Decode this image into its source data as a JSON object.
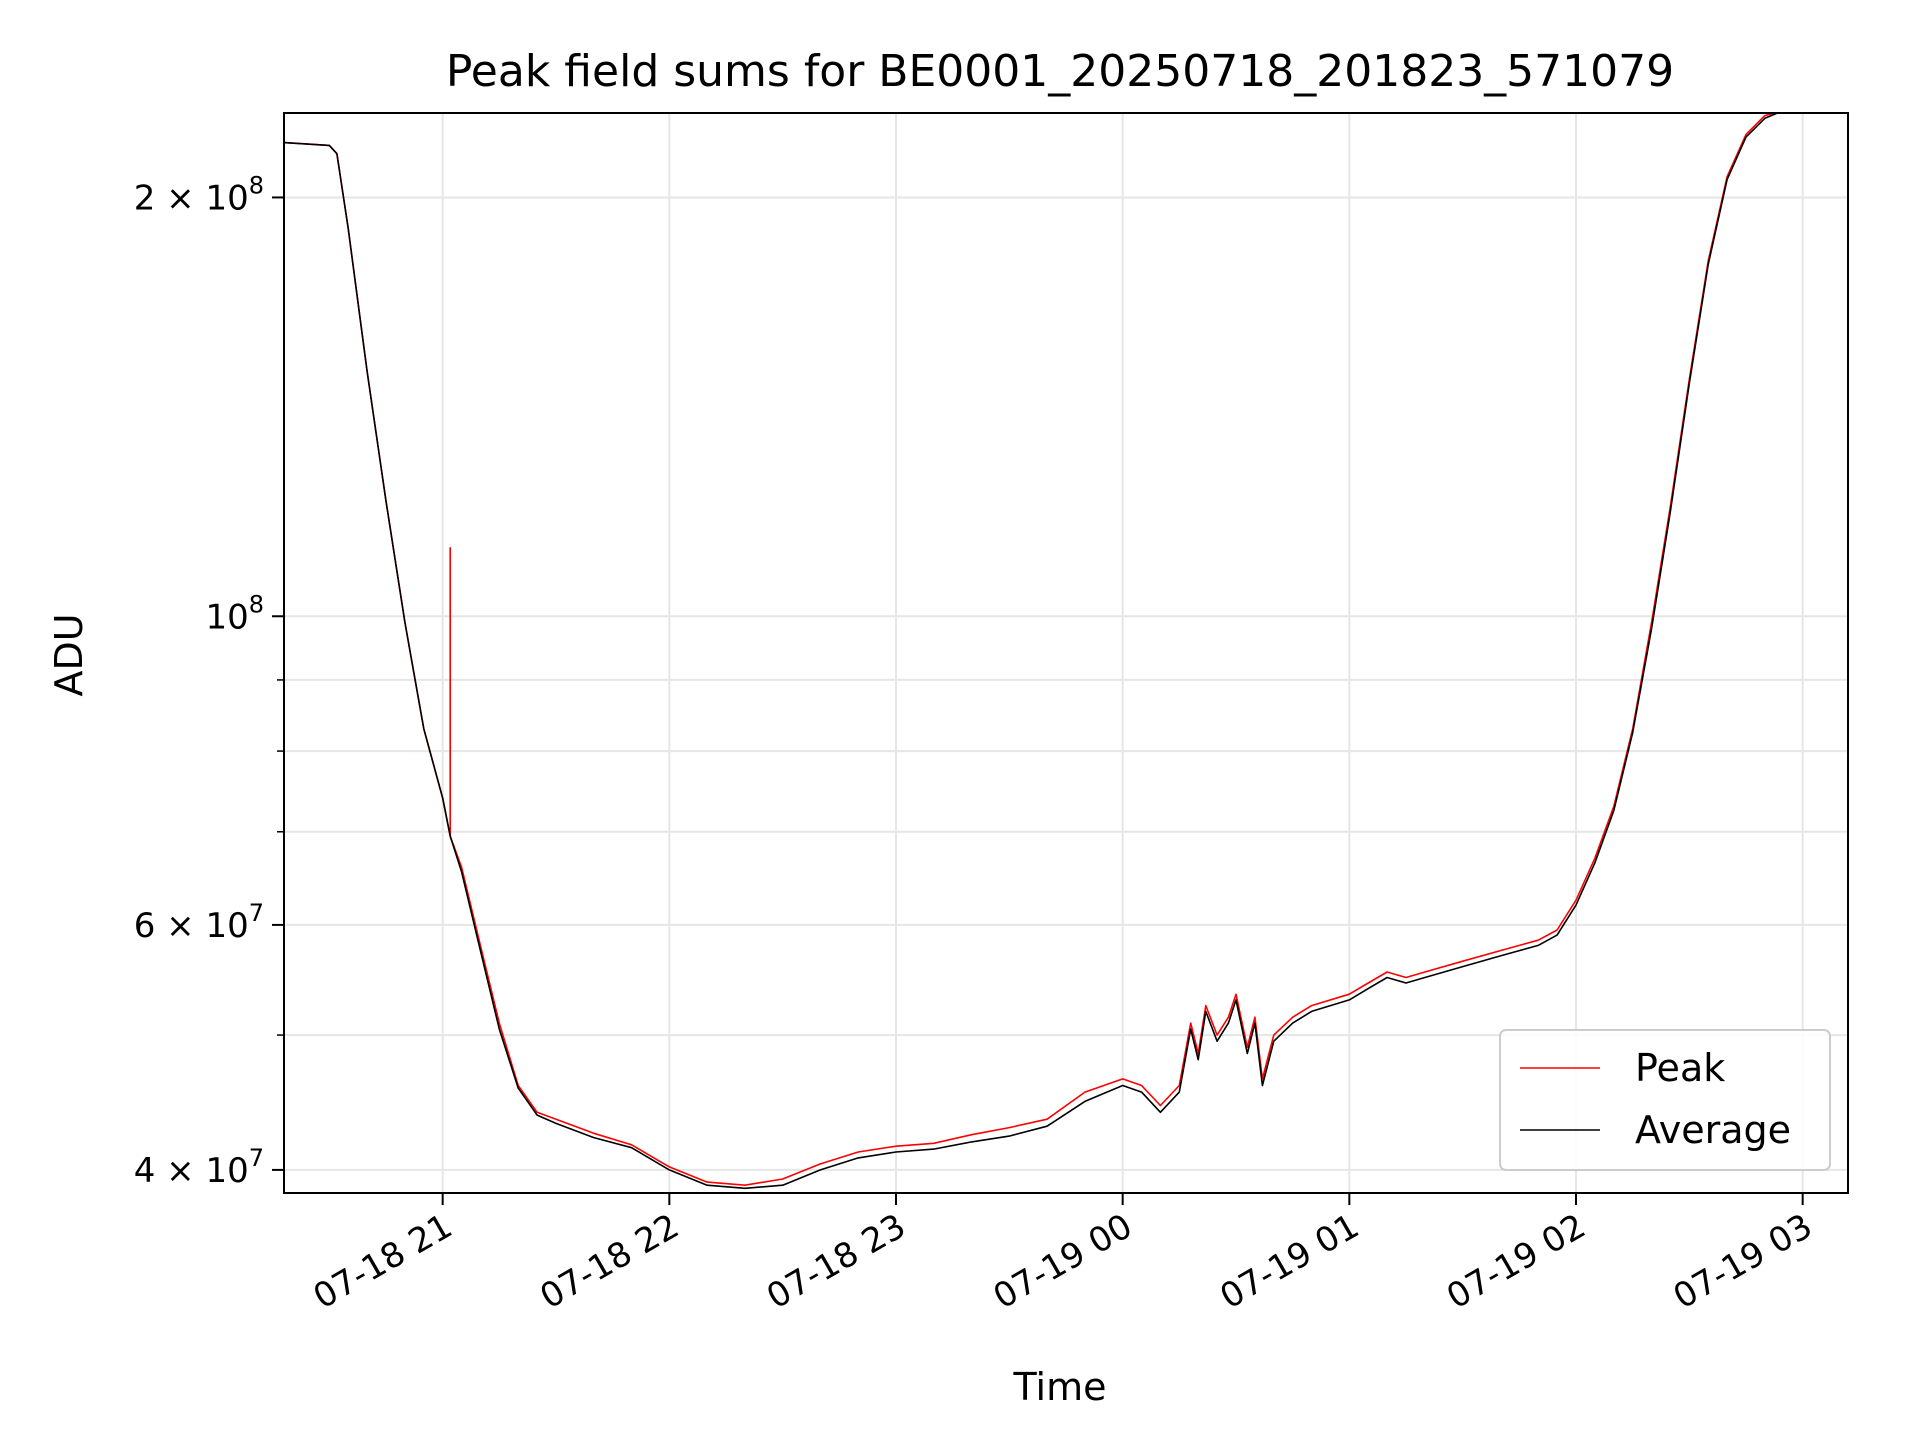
{
  "chart_data": {
    "type": "line",
    "title": "Peak field sums for BE0001_20250718_201823_571079",
    "xlabel": "Time",
    "ylabel": "ADU",
    "yscale": "log",
    "ylim": [
      38500000,
      230000000
    ],
    "xlim": [
      "2025-07-18 20:18",
      "2025-07-19 03:12"
    ],
    "grid": true,
    "legend_position": "bottom-right",
    "x_ticks": [
      {
        "value": "2025-07-18 21:00",
        "label": "07-18 21"
      },
      {
        "value": "2025-07-18 22:00",
        "label": "07-18 22"
      },
      {
        "value": "2025-07-18 23:00",
        "label": "07-18 23"
      },
      {
        "value": "2025-07-19 00:00",
        "label": "07-19 00"
      },
      {
        "value": "2025-07-19 01:00",
        "label": "07-19 01"
      },
      {
        "value": "2025-07-19 02:00",
        "label": "07-19 02"
      },
      {
        "value": "2025-07-19 03:00",
        "label": "07-19 03"
      }
    ],
    "y_ticks": [
      {
        "value": 40000000,
        "base": "4 × 10",
        "exp": "7"
      },
      {
        "value": 60000000,
        "base": "6 × 10",
        "exp": "7"
      },
      {
        "value": 100000000,
        "base": "10",
        "exp": "8"
      },
      {
        "value": 200000000,
        "base": "2 × 10",
        "exp": "8"
      }
    ],
    "y_minor_ticks": [
      50000000,
      70000000,
      80000000,
      90000000
    ],
    "series": [
      {
        "name": "Peak",
        "color": "#ff0000",
        "x": [
          "2025-07-18 20:18",
          "2025-07-18 20:30",
          "2025-07-18 20:32",
          "2025-07-18 20:35",
          "2025-07-18 20:40",
          "2025-07-18 20:45",
          "2025-07-18 20:50",
          "2025-07-18 20:55",
          "2025-07-18 21:00",
          "2025-07-18 21:02",
          "2025-07-18 21:02",
          "2025-07-18 21:02",
          "2025-07-18 21:05",
          "2025-07-18 21:10",
          "2025-07-18 21:15",
          "2025-07-18 21:20",
          "2025-07-18 21:25",
          "2025-07-18 21:30",
          "2025-07-18 21:40",
          "2025-07-18 21:50",
          "2025-07-18 22:00",
          "2025-07-18 22:10",
          "2025-07-18 22:20",
          "2025-07-18 22:30",
          "2025-07-18 22:40",
          "2025-07-18 22:50",
          "2025-07-18 23:00",
          "2025-07-18 23:10",
          "2025-07-18 23:20",
          "2025-07-18 23:30",
          "2025-07-18 23:40",
          "2025-07-18 23:50",
          "2025-07-19 00:00",
          "2025-07-19 00:05",
          "2025-07-19 00:10",
          "2025-07-19 00:15",
          "2025-07-19 00:18",
          "2025-07-19 00:20",
          "2025-07-19 00:22",
          "2025-07-19 00:25",
          "2025-07-19 00:28",
          "2025-07-19 00:30",
          "2025-07-19 00:33",
          "2025-07-19 00:35",
          "2025-07-19 00:37",
          "2025-07-19 00:40",
          "2025-07-19 00:45",
          "2025-07-19 00:50",
          "2025-07-19 01:00",
          "2025-07-19 01:05",
          "2025-07-19 01:10",
          "2025-07-19 01:15",
          "2025-07-19 01:20",
          "2025-07-19 01:30",
          "2025-07-19 01:40",
          "2025-07-19 01:50",
          "2025-07-19 01:55",
          "2025-07-19 02:00",
          "2025-07-19 02:05",
          "2025-07-19 02:10",
          "2025-07-19 02:15",
          "2025-07-19 02:20",
          "2025-07-19 02:25",
          "2025-07-19 02:30",
          "2025-07-19 02:35",
          "2025-07-19 02:40",
          "2025-07-19 02:45",
          "2025-07-19 02:50",
          "2025-07-19 02:55",
          "2025-07-19 03:00",
          "2025-07-19 03:05",
          "2025-07-19 03:12"
        ],
        "y": [
          219000000,
          218000000,
          215000000,
          190000000,
          150000000,
          121000000,
          99000000,
          83000000,
          74000000,
          69500000,
          112000000,
          69500000,
          66000000,
          58000000,
          51000000,
          46000000,
          44000000,
          43500000,
          42500000,
          41700000,
          40200000,
          39200000,
          39000000,
          39400000,
          40400000,
          41200000,
          41600000,
          41800000,
          42400000,
          42900000,
          43500000,
          45500000,
          46500000,
          46000000,
          44500000,
          46000000,
          51000000,
          48500000,
          52500000,
          50000000,
          51500000,
          53500000,
          49000000,
          51500000,
          46500000,
          50000000,
          51500000,
          52500000,
          53500000,
          54500000,
          55500000,
          55000000,
          55500000,
          56500000,
          57500000,
          58500000,
          59500000,
          62500000,
          67000000,
          73000000,
          83000000,
          99000000,
          120000000,
          148000000,
          180000000,
          207000000,
          222000000,
          229000000,
          231000000,
          232000000,
          232000000,
          232000000
        ]
      },
      {
        "name": "Average",
        "color": "#000000",
        "x": [
          "2025-07-18 20:18",
          "2025-07-18 20:30",
          "2025-07-18 20:32",
          "2025-07-18 20:35",
          "2025-07-18 20:40",
          "2025-07-18 20:45",
          "2025-07-18 20:50",
          "2025-07-18 20:55",
          "2025-07-18 21:00",
          "2025-07-18 21:02",
          "2025-07-18 21:05",
          "2025-07-18 21:10",
          "2025-07-18 21:15",
          "2025-07-18 21:20",
          "2025-07-18 21:25",
          "2025-07-18 21:30",
          "2025-07-18 21:40",
          "2025-07-18 21:50",
          "2025-07-18 22:00",
          "2025-07-18 22:10",
          "2025-07-18 22:20",
          "2025-07-18 22:30",
          "2025-07-18 22:40",
          "2025-07-18 22:50",
          "2025-07-18 23:00",
          "2025-07-18 23:10",
          "2025-07-18 23:20",
          "2025-07-18 23:30",
          "2025-07-18 23:40",
          "2025-07-18 23:50",
          "2025-07-19 00:00",
          "2025-07-19 00:05",
          "2025-07-19 00:10",
          "2025-07-19 00:15",
          "2025-07-19 00:18",
          "2025-07-19 00:20",
          "2025-07-19 00:22",
          "2025-07-19 00:25",
          "2025-07-19 00:28",
          "2025-07-19 00:30",
          "2025-07-19 00:33",
          "2025-07-19 00:35",
          "2025-07-19 00:37",
          "2025-07-19 00:40",
          "2025-07-19 00:45",
          "2025-07-19 00:50",
          "2025-07-19 01:00",
          "2025-07-19 01:05",
          "2025-07-19 01:10",
          "2025-07-19 01:15",
          "2025-07-19 01:20",
          "2025-07-19 01:30",
          "2025-07-19 01:40",
          "2025-07-19 01:50",
          "2025-07-19 01:55",
          "2025-07-19 02:00",
          "2025-07-19 02:05",
          "2025-07-19 02:10",
          "2025-07-19 02:15",
          "2025-07-19 02:20",
          "2025-07-19 02:25",
          "2025-07-19 02:30",
          "2025-07-19 02:35",
          "2025-07-19 02:40",
          "2025-07-19 02:45",
          "2025-07-19 02:50",
          "2025-07-19 02:55",
          "2025-07-19 03:00",
          "2025-07-19 03:05",
          "2025-07-19 03:12"
        ],
        "y": [
          219000000,
          218000000,
          215000000,
          190000000,
          150000000,
          121000000,
          99000000,
          83000000,
          74000000,
          69500000,
          65500000,
          57500000,
          50500000,
          45800000,
          43800000,
          43200000,
          42200000,
          41500000,
          40000000,
          39000000,
          38800000,
          39000000,
          40000000,
          40800000,
          41200000,
          41400000,
          41900000,
          42300000,
          43000000,
          44800000,
          46000000,
          45500000,
          44000000,
          45500000,
          50500000,
          48000000,
          52000000,
          49500000,
          51000000,
          53000000,
          48500000,
          51000000,
          46000000,
          49500000,
          51000000,
          52000000,
          53000000,
          54000000,
          55000000,
          54500000,
          55000000,
          56000000,
          57000000,
          58000000,
          59000000,
          62000000,
          66500000,
          72500000,
          82500000,
          98000000,
          119000000,
          147000000,
          179000000,
          206000000,
          221000000,
          228000000,
          231000000,
          232000000,
          232000000,
          232000000
        ]
      }
    ]
  }
}
